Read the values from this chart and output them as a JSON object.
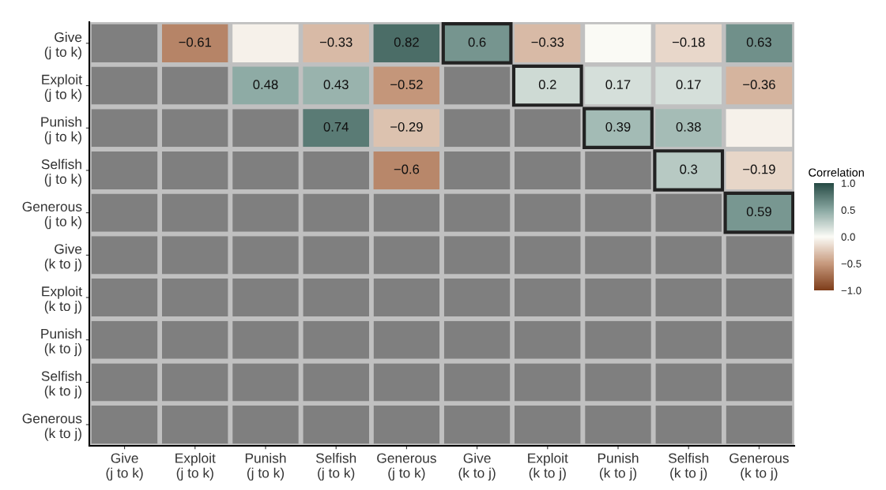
{
  "chart_data": {
    "type": "heatmap",
    "clabel": "Correlation",
    "categories": [
      "Give\n(j to k)",
      "Exploit\n(j to k)",
      "Punish\n(j to k)",
      "Selfish\n(j to k)",
      "Generous\n(j to k)",
      "Give\n(k to j)",
      "Exploit\n(k to j)",
      "Punish\n(k to j)",
      "Selfish\n(k to j)",
      "Generous\n(k to j)"
    ],
    "y_categories": [
      "Give\n(j to k)",
      "Exploit\n(j to k)",
      "Punish\n(j to k)",
      "Selfish\n(j to k)",
      "Generous\n(j to k)",
      "Give\n(k to j)",
      "Exploit\n(k to j)",
      "Punish\n(k to j)",
      "Selfish\n(k to j)",
      "Generous\n(k to j)"
    ],
    "cells": [
      [
        null,
        -0.61,
        -0.05,
        -0.33,
        0.82,
        0.6,
        -0.33,
        0.0,
        -0.18,
        0.63
      ],
      [
        null,
        null,
        0.48,
        0.43,
        -0.52,
        null,
        0.2,
        0.17,
        0.17,
        -0.36
      ],
      [
        null,
        null,
        null,
        0.74,
        -0.29,
        null,
        null,
        0.39,
        0.38,
        -0.05
      ],
      [
        null,
        null,
        null,
        null,
        -0.6,
        null,
        null,
        null,
        0.3,
        -0.19
      ],
      [
        null,
        null,
        null,
        null,
        null,
        null,
        null,
        null,
        null,
        0.59
      ],
      [
        null,
        null,
        null,
        null,
        null,
        null,
        null,
        null,
        null,
        null
      ],
      [
        null,
        null,
        null,
        null,
        null,
        null,
        null,
        null,
        null,
        null
      ],
      [
        null,
        null,
        null,
        null,
        null,
        null,
        null,
        null,
        null,
        null
      ],
      [
        null,
        null,
        null,
        null,
        null,
        null,
        null,
        null,
        null,
        null
      ],
      [
        null,
        null,
        null,
        null,
        null,
        null,
        null,
        null,
        null,
        null
      ]
    ],
    "cell_labels": [
      [
        null,
        "−0.61",
        null,
        "−0.33",
        "0.82",
        "0.6",
        "−0.33",
        null,
        "−0.18",
        "0.63"
      ],
      [
        null,
        null,
        "0.48",
        "0.43",
        "−0.52",
        null,
        "0.2",
        "0.17",
        "0.17",
        "−0.36"
      ],
      [
        null,
        null,
        null,
        "0.74",
        "−0.29",
        null,
        null,
        "0.39",
        "0.38",
        null
      ],
      [
        null,
        null,
        null,
        null,
        "−0.6",
        null,
        null,
        null,
        "0.3",
        "−0.19"
      ],
      [
        null,
        null,
        null,
        null,
        null,
        null,
        null,
        null,
        null,
        "0.59"
      ],
      [
        null,
        null,
        null,
        null,
        null,
        null,
        null,
        null,
        null,
        null
      ],
      [
        null,
        null,
        null,
        null,
        null,
        null,
        null,
        null,
        null,
        null
      ],
      [
        null,
        null,
        null,
        null,
        null,
        null,
        null,
        null,
        null,
        null
      ],
      [
        null,
        null,
        null,
        null,
        null,
        null,
        null,
        null,
        null,
        null
      ],
      [
        null,
        null,
        null,
        null,
        null,
        null,
        null,
        null,
        null,
        null
      ]
    ],
    "clim": [
      -1,
      1
    ],
    "cticks": [
      {
        "value": -1,
        "label": "−1.0"
      },
      {
        "value": -0.5,
        "label": "−0.5"
      },
      {
        "value": 0,
        "label": "0.0"
      },
      {
        "value": 0.5,
        "label": "0.5"
      },
      {
        "value": 1,
        "label": "1.0"
      }
    ]
  }
}
